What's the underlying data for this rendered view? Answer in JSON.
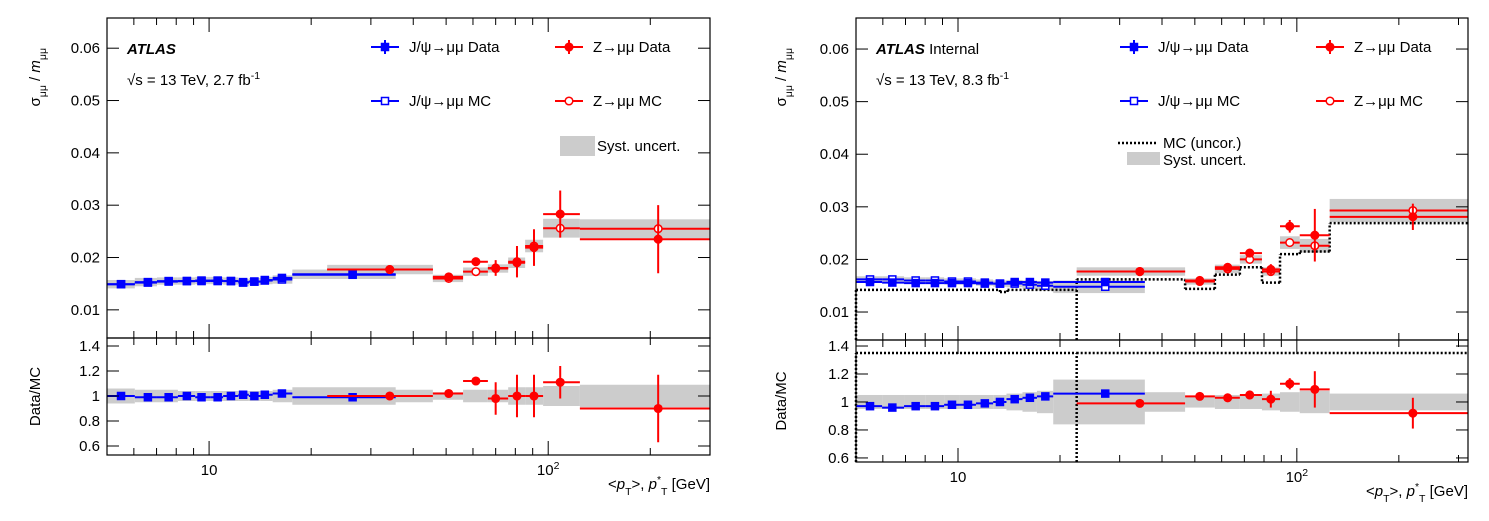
{
  "chart_data": [
    {
      "type": "errorbar",
      "brand": "ATLAS",
      "energy_parts": [
        {
          "text": "√s = 13 TeV, 2.7 fb"
        },
        {
          "text": "-1",
          "sup": true
        }
      ],
      "ylabel_parts": [
        {
          "text": "σ"
        },
        {
          "text": "μμ",
          "sub": true
        },
        {
          "text": " / "
        },
        {
          "text": "m",
          "italic": true
        },
        {
          "text": "μμ",
          "sub": true
        }
      ],
      "ratio_ylabel": "Data/MC",
      "xlabel_parts": [
        {
          "text": "<"
        },
        {
          "text": "p",
          "italic": true
        },
        {
          "text": "T",
          "sub": true
        },
        {
          "text": ">, "
        },
        {
          "text": "p",
          "italic": true
        },
        {
          "text": "*",
          "sup": true
        },
        {
          "text": "T",
          "sub": true
        },
        {
          "text": " [GeV]"
        }
      ],
      "xscale": "log",
      "xlim": [
        5,
        300
      ],
      "xticks": [
        {
          "value": 10,
          "label": "10"
        },
        {
          "value": 100,
          "label": "10",
          "exponent": "2"
        }
      ],
      "xminor": [
        6,
        7,
        8,
        9,
        20,
        30,
        40,
        50,
        60,
        70,
        80,
        90,
        200,
        300
      ],
      "ylim": [
        0.00462,
        0.06577
      ],
      "yticks": [
        0.01,
        0.02,
        0.03,
        0.04,
        0.05,
        0.06
      ],
      "ratio_ylim": [
        0.528,
        1.464
      ],
      "ratio_yticks": [
        0.6,
        0.8,
        1,
        1.2,
        1.4
      ],
      "ratio_center": 1,
      "syst_name": "Syst. uncert.",
      "syst_color": "#cccccc",
      "series": [
        {
          "name": "J/ψ→μμ Data",
          "color": "#0000ff",
          "marker": "square-filled",
          "x": [
            5.5,
            6.6,
            7.6,
            8.6,
            9.5,
            10.6,
            11.6,
            12.6,
            13.6,
            14.6,
            16.4,
            26.5
          ],
          "x_low": [
            5,
            6.04,
            7.02,
            8.09,
            9.1,
            10.07,
            11,
            12.2,
            13.1,
            14.2,
            15.4,
            17.6
          ],
          "x_high": [
            6.04,
            7.02,
            8.09,
            9.1,
            10.07,
            11,
            12.2,
            13.1,
            14.2,
            15.4,
            17.6,
            35.5
          ],
          "values": [
            0.0149,
            0.0152,
            0.0154,
            0.0155,
            0.0155,
            0.0155,
            0.0155,
            0.0153,
            0.0154,
            0.0157,
            0.0161,
            0.0167
          ],
          "errors": [
            0.0001,
            0.0001,
            0.0001,
            0.0001,
            0.0001,
            0.0001,
            0.0001,
            0.0001,
            0.0001,
            0.0001,
            0.0001,
            0.0001
          ],
          "ratio": [
            1.0,
            0.99,
            0.99,
            1.0,
            0.99,
            0.99,
            1.0,
            1.01,
            1.0,
            1.01,
            1.02,
            0.99
          ],
          "ratio_errors": [
            0.01,
            0.01,
            0.01,
            0.01,
            0.01,
            0.01,
            0.01,
            0.01,
            0.01,
            0.01,
            0.01,
            0.01
          ]
        },
        {
          "name": "J/ψ→μμ MC",
          "color": "#0000ff",
          "marker": "square-open",
          "x": [
            5.5,
            6.6,
            7.6,
            8.6,
            9.5,
            10.6,
            11.6,
            12.6,
            13.6,
            14.6,
            16.4,
            26.5
          ],
          "x_low": [
            5,
            6.04,
            7.02,
            8.09,
            9.1,
            10.07,
            11,
            12.2,
            13.1,
            14.2,
            15.4,
            17.6
          ],
          "x_high": [
            6.04,
            7.02,
            8.09,
            9.1,
            10.07,
            11,
            12.2,
            13.1,
            14.2,
            15.4,
            17.6,
            35.5
          ],
          "values": [
            0.0149,
            0.0153,
            0.0155,
            0.0155,
            0.0156,
            0.0156,
            0.0155,
            0.0152,
            0.0154,
            0.0156,
            0.0158,
            0.0168
          ],
          "syst": [
            0.0008,
            0.0008,
            0.0007,
            0.0007,
            0.0007,
            0.0007,
            0.0007,
            0.0007,
            0.0007,
            0.0007,
            0.0008,
            0.0009
          ],
          "ratio_syst": [
            0.06,
            0.05,
            0.05,
            0.04,
            0.04,
            0.04,
            0.04,
            0.04,
            0.04,
            0.04,
            0.05,
            0.07
          ]
        },
        {
          "name": "Z→μμ Data",
          "color": "#ff0000",
          "marker": "circle-filled",
          "x": [
            34.1,
            50.9,
            61.2,
            70,
            80.9,
            90.8,
            108.5,
            211
          ],
          "x_low": [
            22.3,
            45.7,
            56.1,
            66.4,
            76.2,
            85.5,
            96.6,
            124
          ],
          "x_high": [
            45.7,
            56.1,
            66.4,
            76.2,
            85.5,
            96.6,
            124,
            300
          ],
          "values": [
            0.0177,
            0.0163,
            0.0192,
            0.018,
            0.0192,
            0.0219,
            0.0283,
            0.0235
          ],
          "errors": [
            0.0002,
            0.0002,
            0.0008,
            0.0015,
            0.003,
            0.0035,
            0.0045,
            0.0065
          ],
          "ratio": [
            1.0,
            1.02,
            1.12,
            0.98,
            1.0,
            1.0,
            1.11,
            0.9
          ],
          "ratio_errors": [
            0.01,
            0.01,
            0.03,
            0.13,
            0.17,
            0.17,
            0.13,
            0.27
          ]
        },
        {
          "name": "Z→μμ MC",
          "color": "#ff0000",
          "marker": "circle-open",
          "x": [
            34.1,
            50.9,
            61.2,
            70,
            80.9,
            90.8,
            108.5,
            211
          ],
          "x_low": [
            22.3,
            45.7,
            56.1,
            66.4,
            76.2,
            85.5,
            96.6,
            124
          ],
          "x_high": [
            45.7,
            56.1,
            66.4,
            76.2,
            85.5,
            96.6,
            124,
            300
          ],
          "values": [
            0.0177,
            0.016,
            0.0173,
            0.0179,
            0.019,
            0.0222,
            0.0256,
            0.0255
          ],
          "syst": [
            0.0009,
            0.0007,
            0.0008,
            0.0008,
            0.001,
            0.0012,
            0.0018,
            0.0018
          ],
          "ratio_syst": [
            0.05,
            0.03,
            0.05,
            0.05,
            0.07,
            0.07,
            0.08,
            0.09
          ]
        }
      ]
    },
    {
      "type": "errorbar",
      "brand": "ATLAS",
      "brand_suffix": "Internal",
      "energy_parts": [
        {
          "text": "√s = 13 TeV, 8.3 fb"
        },
        {
          "text": "-1",
          "sup": true
        }
      ],
      "ylabel_parts": [
        {
          "text": "σ"
        },
        {
          "text": "μμ",
          "sub": true
        },
        {
          "text": " / "
        },
        {
          "text": "m",
          "italic": true
        },
        {
          "text": "μμ",
          "sub": true
        }
      ],
      "ratio_ylabel": "Data/MC",
      "xlabel_parts": [
        {
          "text": "<"
        },
        {
          "text": "p",
          "italic": true
        },
        {
          "text": "T",
          "sub": true
        },
        {
          "text": ">, "
        },
        {
          "text": "p",
          "italic": true
        },
        {
          "text": "*",
          "sup": true
        },
        {
          "text": "T",
          "sub": true
        },
        {
          "text": " [GeV]"
        }
      ],
      "xscale": "log",
      "xlim": [
        5,
        320
      ],
      "xticks": [
        {
          "value": 10,
          "label": "10"
        },
        {
          "value": 100,
          "label": "10",
          "exponent": "2"
        }
      ],
      "xminor": [
        6,
        7,
        8,
        9,
        20,
        30,
        40,
        50,
        60,
        70,
        80,
        90,
        200,
        300
      ],
      "ylim": [
        0.00468,
        0.0659
      ],
      "yticks": [
        0.01,
        0.02,
        0.03,
        0.04,
        0.05,
        0.06
      ],
      "ratio_ylim": [
        0.571,
        1.443
      ],
      "ratio_yticks": [
        0.6,
        0.8,
        1,
        1.2,
        1.4
      ],
      "ratio_center": 1,
      "syst_name": "Syst. uncert.",
      "syst_color": "#cccccc",
      "mc_uncor": {
        "name": "MC (uncor.)",
        "color": "#000000",
        "pieces": [
          {
            "bin_edges": [
              5,
              13.3,
              14.0,
              22.4
            ],
            "values": [
              0.0142,
              0.0138,
              0.0142
            ]
          },
          {
            "bin_edges": [
              22.4,
              46.8,
              57.3,
              67.9,
              78.9,
              89.2,
              102,
              125,
              320
            ],
            "values": [
              0.0162,
              0.0144,
              0.0171,
              0.0185,
              0.0156,
              0.021,
              0.0215,
              0.0269
            ]
          }
        ],
        "ratio_pieces": [
          {
            "bin_edges": [
              5,
              22.4
            ],
            "values": [
              1.35
            ]
          },
          {
            "bin_edges": [
              22.4,
              320
            ],
            "values": [
              1.35
            ]
          }
        ]
      },
      "series": [
        {
          "name": "J/ψ→μμ Data",
          "color": "#0000ff",
          "marker": "square-filled",
          "x": [
            5.5,
            6.4,
            7.5,
            8.55,
            9.6,
            10.7,
            12.0,
            13.3,
            14.7,
            16.3,
            18.1,
            27.2
          ],
          "x_low": [
            5,
            5.97,
            6.93,
            8.0,
            9.1,
            10.1,
            11.3,
            12.7,
            13.9,
            15.5,
            17.1,
            19.1
          ],
          "x_high": [
            5.97,
            6.93,
            8.0,
            9.1,
            10.1,
            11.3,
            12.7,
            13.9,
            15.5,
            17.1,
            19.1,
            35.6
          ],
          "values": [
            0.0157,
            0.0156,
            0.0155,
            0.0155,
            0.0155,
            0.0155,
            0.0154,
            0.0154,
            0.0157,
            0.0157,
            0.0156,
            0.0157
          ],
          "errors": [
            0.0001,
            0.0001,
            0.0001,
            0.0001,
            0.0001,
            0.0001,
            0.0001,
            0.0001,
            0.0001,
            0.0001,
            0.0001,
            0.0001
          ],
          "ratio": [
            0.97,
            0.96,
            0.97,
            0.97,
            0.98,
            0.98,
            0.99,
            1.0,
            1.02,
            1.03,
            1.04,
            1.06
          ],
          "ratio_errors": [
            0.01,
            0.01,
            0.01,
            0.01,
            0.01,
            0.01,
            0.01,
            0.01,
            0.01,
            0.01,
            0.01,
            0.01
          ]
        },
        {
          "name": "J/ψ→μμ MC",
          "color": "#0000ff",
          "marker": "square-open",
          "x": [
            5.5,
            6.4,
            7.5,
            8.55,
            9.6,
            10.7,
            12.0,
            13.3,
            14.7,
            16.3,
            18.1,
            27.2
          ],
          "x_low": [
            5,
            5.97,
            6.93,
            8.0,
            9.1,
            10.1,
            11.3,
            12.7,
            13.9,
            15.5,
            17.1,
            19.1
          ],
          "x_high": [
            5.97,
            6.93,
            8.0,
            9.1,
            10.1,
            11.3,
            12.7,
            13.9,
            15.5,
            17.1,
            19.1,
            35.6
          ],
          "values": [
            0.0162,
            0.0162,
            0.016,
            0.016,
            0.0158,
            0.0158,
            0.0156,
            0.0154,
            0.0154,
            0.0152,
            0.015,
            0.0148
          ],
          "syst": [
            0.0006,
            0.0006,
            0.0006,
            0.0006,
            0.0006,
            0.0006,
            0.0006,
            0.0006,
            0.0007,
            0.0008,
            0.0009,
            0.0012
          ],
          "ratio_syst": [
            0.05,
            0.05,
            0.05,
            0.05,
            0.05,
            0.05,
            0.05,
            0.05,
            0.06,
            0.07,
            0.08,
            0.16
          ]
        },
        {
          "name": "Z→μμ Data",
          "color": "#ff0000",
          "marker": "circle-filled",
          "x": [
            34.4,
            51.7,
            62.5,
            72.6,
            83.8,
            95.3,
            113,
            220
          ],
          "x_low": [
            22.4,
            46.8,
            57.3,
            67.9,
            78.9,
            89.2,
            102,
            125
          ],
          "x_high": [
            46.8,
            57.3,
            67.9,
            78.9,
            89.2,
            102,
            125,
            320
          ],
          "values": [
            0.0177,
            0.016,
            0.0185,
            0.0212,
            0.0181,
            0.0263,
            0.0246,
            0.0281
          ],
          "errors": [
            0.0003,
            0.0003,
            0.0004,
            0.0006,
            0.001,
            0.0012,
            0.005,
            0.0025
          ],
          "ratio": [
            0.99,
            1.04,
            1.03,
            1.05,
            1.02,
            1.13,
            1.09,
            0.92
          ],
          "ratio_errors": [
            0.01,
            0.01,
            0.01,
            0.03,
            0.06,
            0.04,
            0.13,
            0.11
          ]
        },
        {
          "name": "Z→μμ MC",
          "color": "#ff0000",
          "marker": "circle-open",
          "x": [
            34.4,
            51.7,
            62.5,
            72.6,
            83.8,
            95.3,
            113,
            220
          ],
          "x_low": [
            22.4,
            46.8,
            57.3,
            67.9,
            78.9,
            89.2,
            102,
            125
          ],
          "x_high": [
            46.8,
            57.3,
            67.9,
            78.9,
            89.2,
            102,
            125,
            320
          ],
          "values": [
            0.0177,
            0.0158,
            0.0182,
            0.02,
            0.0177,
            0.0232,
            0.0226,
            0.0293
          ],
          "syst": [
            0.0008,
            0.0006,
            0.0008,
            0.0008,
            0.0008,
            0.0012,
            0.0013,
            0.0022
          ],
          "ratio_syst": [
            0.07,
            0.04,
            0.05,
            0.05,
            0.06,
            0.07,
            0.08,
            0.06
          ]
        }
      ]
    }
  ]
}
